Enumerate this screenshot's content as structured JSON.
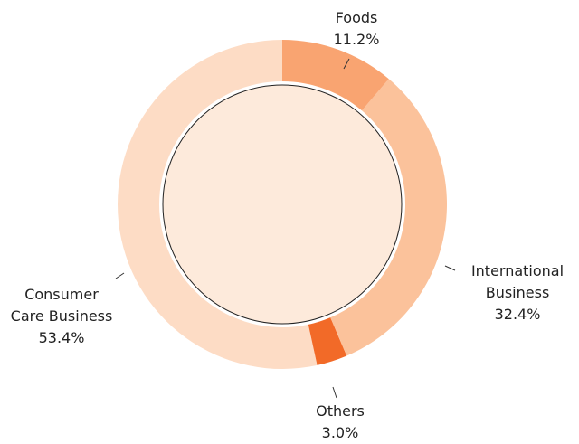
{
  "chart_data": {
    "type": "donut",
    "categories": [
      "Foods",
      "International\nBusiness",
      "Others",
      "Consumer\nCare Business"
    ],
    "values": [
      11.2,
      32.4,
      3.0,
      53.4
    ],
    "value_labels": [
      "11.2%",
      "32.4%",
      "3.0%",
      "53.4%"
    ],
    "colors": [
      "#f9a471",
      "#fbc29b",
      "#f26a28",
      "#fddcc5"
    ]
  }
}
